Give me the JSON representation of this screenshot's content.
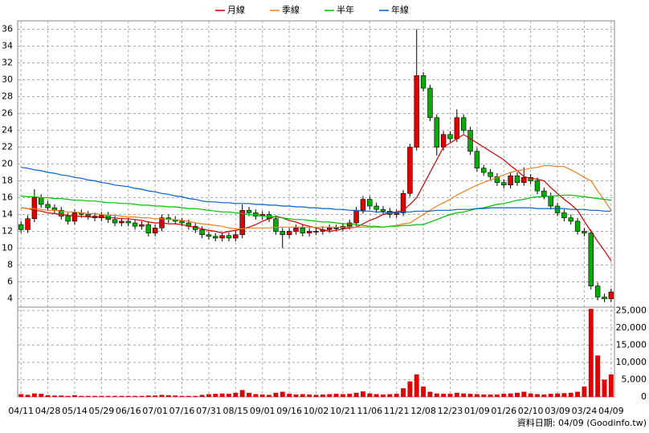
{
  "chart_data": {
    "type": "candlestick",
    "legend_position": "top",
    "grid": true,
    "up_color": "#e00000",
    "down_color": "#00b000",
    "volume_color": "#e00000",
    "note": "資料日期: 04/09 (Goodinfo.tw)",
    "categories": [
      "04/11",
      null,
      null,
      null,
      "04/28",
      null,
      null,
      null,
      "05/14",
      null,
      null,
      null,
      "05/29",
      null,
      null,
      null,
      "06/16",
      null,
      null,
      null,
      "07/01",
      null,
      null,
      null,
      "07/16",
      null,
      null,
      null,
      "07/31",
      null,
      null,
      null,
      "08/15",
      null,
      null,
      null,
      "09/01",
      null,
      null,
      null,
      "09/16",
      null,
      null,
      null,
      "10/02",
      null,
      null,
      null,
      "10/21",
      null,
      null,
      null,
      "11/06",
      null,
      null,
      null,
      "11/21",
      null,
      null,
      null,
      "12/08",
      null,
      null,
      null,
      "12/23",
      null,
      null,
      null,
      "01/09",
      null,
      null,
      null,
      "01/26",
      null,
      null,
      null,
      "02/10",
      null,
      null,
      null,
      "03/09",
      null,
      null,
      null,
      "03/24",
      null,
      null,
      null,
      "04/09"
    ],
    "open": [
      12.8,
      12.2,
      13.5,
      16.0,
      15.2,
      14.8,
      14.5,
      13.8,
      13.2,
      14.2,
      14.0,
      13.8,
      13.6,
      13.9,
      13.4,
      13.0,
      13.2,
      13.0,
      12.6,
      12.8,
      11.8,
      12.4,
      13.6,
      13.4,
      13.2,
      13.0,
      12.6,
      12.2,
      11.6,
      11.4,
      11.2,
      11.5,
      11.2,
      11.6,
      14.5,
      14.2,
      13.8,
      14.0,
      13.5,
      12.0,
      11.6,
      12.0,
      12.4,
      11.8,
      12.0,
      12.0,
      12.2,
      12.4,
      12.4,
      12.6,
      13.0,
      14.5,
      15.8,
      15.0,
      14.6,
      14.4,
      14.0,
      14.2,
      16.5,
      22.0,
      30.5,
      29.0,
      25.5,
      22.0,
      23.5,
      23.0,
      25.5,
      24.0,
      21.5,
      19.5,
      19.0,
      18.5,
      17.8,
      17.5,
      18.6,
      17.8,
      18.4,
      18.0,
      16.8,
      16.2,
      15.0,
      14.2,
      13.6,
      13.2,
      12.0,
      11.8,
      5.5,
      4.2,
      4.0
    ],
    "high": [
      13.2,
      13.9,
      17.0,
      16.4,
      15.6,
      15.2,
      14.9,
      14.2,
      14.6,
      14.6,
      14.4,
      14.2,
      14.3,
      14.3,
      13.8,
      13.6,
      13.6,
      13.4,
      13.2,
      13.2,
      12.8,
      14.0,
      14.0,
      13.8,
      13.6,
      13.4,
      13.0,
      12.6,
      12.0,
      11.8,
      11.9,
      11.9,
      12.0,
      15.2,
      14.9,
      14.6,
      14.4,
      14.4,
      13.9,
      12.4,
      12.4,
      12.8,
      12.8,
      12.4,
      12.4,
      12.6,
      12.8,
      12.8,
      13.0,
      13.4,
      14.9,
      16.2,
      16.2,
      15.4,
      15.0,
      14.8,
      14.6,
      16.9,
      22.4,
      36.0,
      30.9,
      29.4,
      25.9,
      23.9,
      23.9,
      26.5,
      25.9,
      24.4,
      21.9,
      19.9,
      19.4,
      18.9,
      18.2,
      19.0,
      19.0,
      19.6,
      18.8,
      18.4,
      17.2,
      16.6,
      15.4,
      14.6,
      14.0,
      13.6,
      12.4,
      12.2,
      5.9,
      4.6,
      5.2
    ],
    "low": [
      11.8,
      11.8,
      13.1,
      14.8,
      14.4,
      14.1,
      13.4,
      12.8,
      12.8,
      13.6,
      13.4,
      13.2,
      13.2,
      13.0,
      12.6,
      12.6,
      12.6,
      12.2,
      12.2,
      11.4,
      11.4,
      12.0,
      13.0,
      12.8,
      12.6,
      12.2,
      11.8,
      11.2,
      11.0,
      10.8,
      10.8,
      10.8,
      10.8,
      11.2,
      13.8,
      13.4,
      13.4,
      13.1,
      11.6,
      10.0,
      11.2,
      11.6,
      11.4,
      11.4,
      11.6,
      11.6,
      11.8,
      12.0,
      12.0,
      12.2,
      12.6,
      14.1,
      14.6,
      14.2,
      14.0,
      13.6,
      13.6,
      13.8,
      16.1,
      21.6,
      28.6,
      25.1,
      21.0,
      21.6,
      22.6,
      22.6,
      23.6,
      21.1,
      19.1,
      18.6,
      18.1,
      17.4,
      17.1,
      17.1,
      17.4,
      17.4,
      17.6,
      16.4,
      15.8,
      14.6,
      13.8,
      13.2,
      12.8,
      11.6,
      11.4,
      5.1,
      3.8,
      3.6,
      3.6
    ],
    "close": [
      12.2,
      13.5,
      16.0,
      15.2,
      14.8,
      14.5,
      13.8,
      13.2,
      14.2,
      14.0,
      13.8,
      13.6,
      13.9,
      13.4,
      13.0,
      13.2,
      13.0,
      12.6,
      12.8,
      11.8,
      12.4,
      13.6,
      13.4,
      13.2,
      13.0,
      12.6,
      12.2,
      11.6,
      11.4,
      11.2,
      11.5,
      11.2,
      11.6,
      14.5,
      14.2,
      13.8,
      14.0,
      13.5,
      12.0,
      11.6,
      12.0,
      12.4,
      11.8,
      12.0,
      12.0,
      12.2,
      12.4,
      12.4,
      12.6,
      13.0,
      14.5,
      15.8,
      15.0,
      14.6,
      14.4,
      14.0,
      14.2,
      16.5,
      22.0,
      30.5,
      29.0,
      25.5,
      22.0,
      23.5,
      23.0,
      25.5,
      24.0,
      21.5,
      19.5,
      19.0,
      18.5,
      17.8,
      17.5,
      18.6,
      17.8,
      18.4,
      18.0,
      16.8,
      16.2,
      15.0,
      14.2,
      13.6,
      13.2,
      12.0,
      11.8,
      5.5,
      4.2,
      4.0,
      4.8
    ],
    "volume": [
      800,
      600,
      1000,
      900,
      500,
      400,
      400,
      300,
      500,
      300,
      300,
      300,
      300,
      300,
      300,
      300,
      300,
      300,
      300,
      400,
      400,
      600,
      500,
      400,
      300,
      300,
      300,
      600,
      800,
      900,
      1000,
      900,
      1200,
      2000,
      1200,
      800,
      700,
      600,
      1200,
      1500,
      900,
      700,
      800,
      700,
      600,
      700,
      800,
      900,
      800,
      900,
      1200,
      1600,
      1000,
      800,
      700,
      800,
      900,
      2500,
      4500,
      6500,
      3000,
      1500,
      1000,
      900,
      900,
      1200,
      1000,
      900,
      800,
      700,
      700,
      700,
      900,
      1000,
      1200,
      1500,
      1000,
      800,
      700,
      900,
      1000,
      1100,
      1200,
      1500,
      3000,
      25500,
      12000,
      5000,
      6500
    ],
    "series": [
      {
        "name": "月線",
        "color": "#cc0000",
        "values": [
          14.8,
          14.7,
          14.5,
          14.4,
          14.2,
          14.1,
          14.0,
          13.9,
          13.8,
          13.8,
          13.7,
          13.7,
          13.7,
          13.6,
          13.6,
          13.5,
          13.5,
          13.4,
          13.3,
          13.1,
          13.0,
          13.0,
          12.9,
          12.9,
          12.8,
          12.6,
          12.5,
          12.3,
          12.1,
          12.0,
          11.8,
          12.0,
          12.1,
          12.3,
          12.5,
          12.8,
          13.2,
          13.5,
          13.8,
          13.6,
          13.3,
          13.1,
          12.8,
          12.6,
          12.4,
          12.2,
          12.0,
          12.1,
          12.3,
          12.4,
          12.5,
          12.9,
          13.3,
          13.6,
          14.0,
          14.2,
          14.3,
          14.5,
          15.2,
          16.0,
          17.5,
          19.0,
          20.5,
          22.0,
          22.5,
          23.0,
          23.5,
          23.0,
          22.5,
          22.0,
          21.5,
          21.0,
          20.5,
          19.8,
          19.2,
          18.5,
          18.3,
          18.2,
          18.0,
          17.2,
          16.5,
          15.8,
          15.2,
          14.5,
          13.2,
          12.0,
          10.8,
          9.7,
          8.5
        ]
      },
      {
        "name": "季線",
        "color": "#e8801c",
        "values": [
          14.8,
          14.7,
          14.7,
          14.6,
          14.5,
          14.5,
          14.4,
          14.3,
          14.3,
          14.2,
          14.1,
          14.1,
          14.0,
          13.9,
          13.9,
          13.8,
          13.7,
          13.7,
          13.6,
          13.6,
          13.5,
          13.5,
          13.4,
          13.4,
          13.3,
          13.2,
          13.0,
          12.9,
          12.8,
          12.7,
          12.6,
          12.4,
          12.3,
          12.3,
          12.4,
          12.4,
          12.4,
          12.4,
          12.5,
          12.5,
          12.5,
          12.5,
          12.5,
          12.5,
          12.5,
          12.5,
          12.5,
          12.5,
          12.5,
          12.5,
          12.5,
          12.5,
          12.5,
          12.5,
          12.5,
          12.6,
          12.7,
          12.9,
          13.0,
          13.5,
          14.0,
          14.5,
          15.0,
          15.4,
          15.8,
          16.3,
          16.7,
          17.1,
          17.5,
          17.8,
          18.1,
          18.4,
          18.7,
          19.0,
          19.2,
          19.3,
          19.5,
          19.6,
          19.8,
          19.8,
          19.7,
          19.7,
          19.3,
          18.9,
          18.4,
          18.0,
          16.8,
          15.7,
          14.5
        ]
      },
      {
        "name": "半年",
        "color": "#00c000",
        "values": [
          16.2,
          16.1,
          16.1,
          16.0,
          16.0,
          15.9,
          15.9,
          15.8,
          15.7,
          15.7,
          15.6,
          15.6,
          15.5,
          15.4,
          15.4,
          15.3,
          15.3,
          15.2,
          15.1,
          15.1,
          15.0,
          15.0,
          14.9,
          14.9,
          14.8,
          14.7,
          14.7,
          14.6,
          14.5,
          14.4,
          14.3,
          14.3,
          14.2,
          14.1,
          14.0,
          13.9,
          13.8,
          13.8,
          13.7,
          13.6,
          13.5,
          13.4,
          13.4,
          13.3,
          13.2,
          13.1,
          13.1,
          13.0,
          12.9,
          12.9,
          12.8,
          12.7,
          12.6,
          12.6,
          12.5,
          12.6,
          12.6,
          12.7,
          12.7,
          12.8,
          12.8,
          13.1,
          13.4,
          13.7,
          14.0,
          14.2,
          14.3,
          14.5,
          14.7,
          14.8,
          15.0,
          15.2,
          15.3,
          15.5,
          15.7,
          15.8,
          16.0,
          16.1,
          16.1,
          16.2,
          16.2,
          16.3,
          16.3,
          16.2,
          16.1,
          16.0,
          15.9,
          15.8,
          15.7
        ]
      },
      {
        "name": "年線",
        "color": "#0060c8",
        "values": [
          19.6,
          19.5,
          19.3,
          19.2,
          19.0,
          18.9,
          18.7,
          18.6,
          18.4,
          18.3,
          18.1,
          18.0,
          17.8,
          17.7,
          17.5,
          17.4,
          17.3,
          17.1,
          17.0,
          16.8,
          16.7,
          16.5,
          16.4,
          16.2,
          16.1,
          15.9,
          15.8,
          15.6,
          15.5,
          15.5,
          15.4,
          15.4,
          15.3,
          15.3,
          15.3,
          15.2,
          15.2,
          15.1,
          15.1,
          15.0,
          15.0,
          14.9,
          14.9,
          14.8,
          14.8,
          14.7,
          14.7,
          14.6,
          14.6,
          14.5,
          14.5,
          14.4,
          14.4,
          14.3,
          14.3,
          14.2,
          14.2,
          14.3,
          14.3,
          14.4,
          14.4,
          14.4,
          14.5,
          14.5,
          14.5,
          14.6,
          14.6,
          14.6,
          14.7,
          14.7,
          14.8,
          14.8,
          14.8,
          14.8,
          14.8,
          14.8,
          14.8,
          14.7,
          14.7,
          14.7,
          14.7,
          14.7,
          14.6,
          14.6,
          14.6,
          14.5,
          14.5,
          14.4,
          14.4
        ]
      }
    ],
    "ylim": [
      3,
      37
    ],
    "yticks": [
      4,
      6,
      8,
      10,
      12,
      14,
      16,
      18,
      20,
      22,
      24,
      26,
      28,
      30,
      32,
      34,
      36
    ],
    "y2lim": [
      0,
      26000
    ],
    "y2ticks": [
      0,
      {
        "value": 5000,
        "label": "5,000"
      },
      {
        "value": 10000,
        "label": "10,000"
      },
      {
        "value": 15000,
        "label": "15,000"
      },
      {
        "value": 20000,
        "label": "20,000"
      },
      {
        "value": 25000,
        "label": "25,000"
      }
    ]
  }
}
